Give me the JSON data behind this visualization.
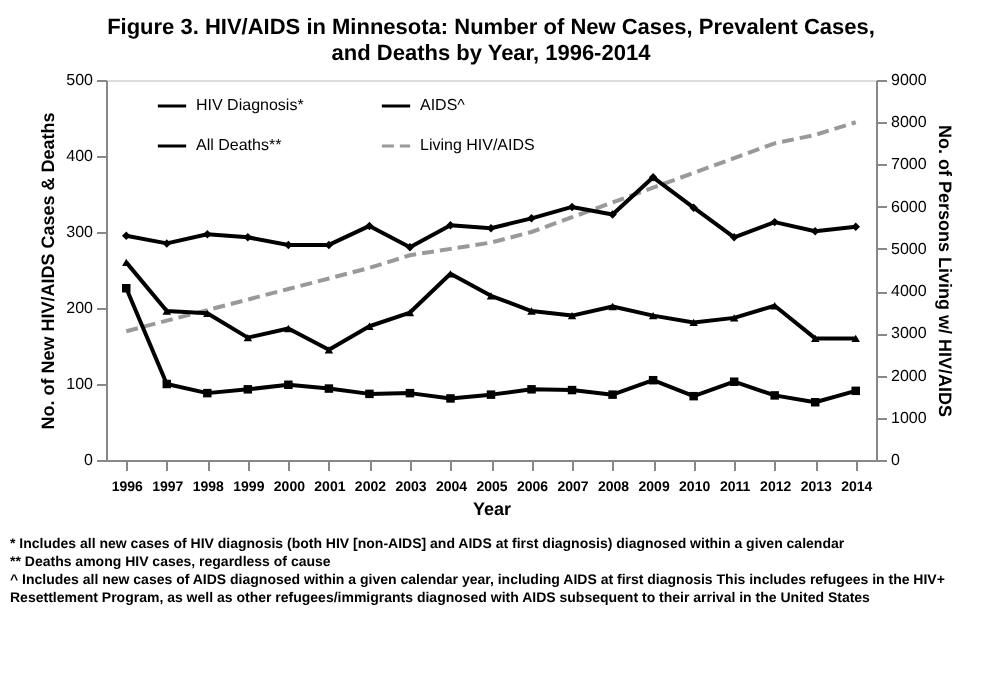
{
  "chart_data": {
    "type": "line",
    "title": "Figure 3. HIV/AIDS in Minnesota: Number of New Cases, Prevalent Cases, and Deaths by Year, 1996-2014",
    "categories": [
      "1996",
      "1997",
      "1998",
      "1999",
      "2000",
      "2001",
      "2002",
      "2003",
      "2004",
      "2005",
      "2006",
      "2007",
      "2008",
      "2009",
      "2010",
      "2011",
      "2012",
      "2013",
      "2014"
    ],
    "xlabel": "Year",
    "ylabel": "No. of New HIV/AIDS Cases & Deaths",
    "y2label": "No. of Persons Living w/ HIV/AIDS",
    "ylim": [
      0,
      500
    ],
    "yticks": [
      0,
      100,
      200,
      300,
      400,
      500
    ],
    "y2lim": [
      0,
      9000
    ],
    "y2ticks": [
      0,
      1000,
      2000,
      3000,
      4000,
      5000,
      6000,
      7000,
      8000,
      9000
    ],
    "grid": false,
    "legend": "top left",
    "series": [
      {
        "name": "HIV Diagnosis*",
        "color": "#000000",
        "marker": "diamond",
        "line_style": "solid",
        "values": [
          295,
          285,
          297,
          293,
          283,
          283,
          308,
          280,
          309,
          305,
          318,
          333,
          323,
          372,
          332,
          293,
          313,
          301,
          307
        ]
      },
      {
        "name": "AIDS^",
        "color": "#000000",
        "marker": "triangle",
        "line_style": "solid",
        "values": [
          260,
          196,
          193,
          161,
          173,
          145,
          176,
          194,
          245,
          216,
          196,
          190,
          202,
          190,
          181,
          187,
          203,
          160,
          160
        ]
      },
      {
        "name": "All Deaths**",
        "color": "#000000",
        "marker": "square",
        "line_style": "solid",
        "values": [
          226,
          100,
          88,
          93,
          99,
          94,
          87,
          88,
          81,
          86,
          93,
          92,
          86,
          105,
          84,
          103,
          85,
          76,
          91
        ]
      },
      {
        "name": "Living HIV/AIDS",
        "color": "#999999",
        "marker": "none",
        "line_style": "dashed",
        "axis": "y2",
        "values": [
          3050,
          3300,
          3550,
          3800,
          4050,
          4300,
          4550,
          4850,
          5000,
          5150,
          5400,
          5750,
          6100,
          6450,
          6800,
          7150,
          7500,
          7700,
          8000
        ]
      }
    ],
    "annotations": [
      "*  Includes all new cases of HIV diagnosis (both HIV [non-AIDS] and AIDS at first diagnosis) diagnosed within a given calendar",
      "**  Deaths among HIV cases, regardless of cause",
      "^  Includes all new cases of AIDS diagnosed within a given calendar year, including AIDS at first diagnosis This includes refugees in the HIV+ Resettlement Program, as well as other refugees/immigrants diagnosed with AIDS subsequent to their arrival in the United States"
    ]
  }
}
